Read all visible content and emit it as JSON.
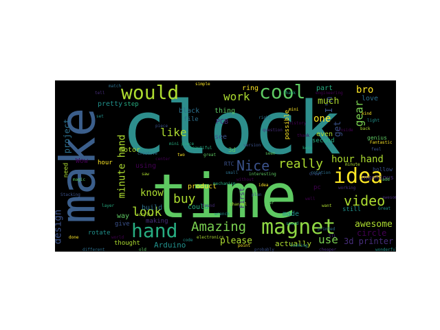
{
  "colors": {
    "page_background": "#ffffff",
    "cloud_background": "#000000",
    "palette": [
      "#2d708e",
      "#5ec962",
      "#3b528b",
      "#472d7b",
      "#21918c",
      "#addc30",
      "#440154",
      "#fde725",
      "#27ad81"
    ]
  },
  "words": [
    {
      "text": "clock"
    },
    {
      "text": "make"
    },
    {
      "text": "time"
    },
    {
      "text": "magnet"
    },
    {
      "text": "would"
    },
    {
      "text": "cool"
    },
    {
      "text": "hand"
    },
    {
      "text": "idea"
    },
    {
      "text": "Amazing"
    },
    {
      "text": "video"
    },
    {
      "text": "Nice"
    },
    {
      "text": "really"
    },
    {
      "text": "hour hand"
    },
    {
      "text": "design"
    },
    {
      "text": "minute hand"
    },
    {
      "text": "like"
    },
    {
      "text": "look"
    },
    {
      "text": "buy"
    },
    {
      "text": "know"
    },
    {
      "text": "work"
    },
    {
      "text": "gear"
    },
    {
      "text": "use"
    },
    {
      "text": "bro"
    },
    {
      "text": "one"
    },
    {
      "text": "get"
    },
    {
      "text": "I'm"
    },
    {
      "text": "much"
    },
    {
      "text": "project"
    },
    {
      "text": "please"
    },
    {
      "text": "awesome"
    },
    {
      "text": "3d printer"
    },
    {
      "text": "Arduino"
    },
    {
      "text": "actually"
    },
    {
      "text": "circle"
    },
    {
      "text": "ring"
    },
    {
      "text": "part"
    },
    {
      "text": "black"
    },
    {
      "text": "thing"
    },
    {
      "text": "see"
    },
    {
      "text": "PCB"
    },
    {
      "text": "pretty"
    },
    {
      "text": "motor"
    },
    {
      "text": "using"
    },
    {
      "text": "product"
    },
    {
      "text": "could"
    },
    {
      "text": "build"
    },
    {
      "text": "way"
    },
    {
      "text": "give"
    },
    {
      "text": "making"
    },
    {
      "text": "rotate"
    },
    {
      "text": "thought"
    },
    {
      "text": "Wow"
    },
    {
      "text": "hour"
    },
    {
      "text": "step"
    },
    {
      "text": "file"
    },
    {
      "text": "3d"
    },
    {
      "text": "RTC"
    },
    {
      "text": "First"
    },
    {
      "text": "made"
    },
    {
      "text": "even"
    },
    {
      "text": "pc"
    },
    {
      "text": "possible"
    },
    {
      "text": "second"
    },
    {
      "text": "love"
    },
    {
      "text": "genius"
    },
    {
      "text": "hollow"
    },
    {
      "text": "ingenious"
    },
    {
      "text": "still"
    },
    {
      "text": "need"
    },
    {
      "text": "engineering"
    },
    {
      "text": "simple"
    },
    {
      "text": "Thank"
    },
    {
      "text": "printed"
    },
    {
      "text": "add"
    },
    {
      "text": "feel"
    },
    {
      "text": "STL"
    },
    {
      "text": "looking"
    },
    {
      "text": "acrylic"
    },
    {
      "text": "center"
    },
    {
      "text": "two"
    },
    {
      "text": "mechanism"
    },
    {
      "text": "small"
    },
    {
      "text": "interesting"
    },
    {
      "text": "Great"
    },
    {
      "text": "working"
    },
    {
      "text": "light"
    },
    {
      "text": "back"
    },
    {
      "text": "thank"
    },
    {
      "text": "idea"
    },
    {
      "text": "mini piece"
    },
    {
      "text": "match"
    },
    {
      "text": "magic"
    },
    {
      "text": "Stacking"
    },
    {
      "text": "tell"
    },
    {
      "text": "set"
    },
    {
      "text": "want"
    },
    {
      "text": "well"
    },
    {
      "text": "Fantastic"
    },
    {
      "text": "layer"
    },
    {
      "text": "different"
    },
    {
      "text": "old"
    },
    {
      "text": "probably"
    },
    {
      "text": "cheaper"
    },
    {
      "text": "wonderful"
    },
    {
      "text": "electronics"
    },
    {
      "text": "world"
    },
    {
      "text": "done"
    },
    {
      "text": "speed"
    },
    {
      "text": "rotation"
    },
    {
      "text": "year"
    },
    {
      "text": "plan"
    },
    {
      "text": "awesome"
    },
    {
      "text": "Great"
    },
    {
      "text": "saw"
    },
    {
      "text": "without"
    },
    {
      "text": "point"
    },
    {
      "text": "beautiful"
    },
    {
      "text": "creative"
    },
    {
      "text": "great"
    },
    {
      "text": "piece"
    },
    {
      "text": "found"
    },
    {
      "text": "wrench"
    },
    {
      "text": "channel"
    },
    {
      "text": "history"
    },
    {
      "text": "mini"
    },
    {
      "text": "keep"
    },
    {
      "text": "right"
    },
    {
      "text": "seen"
    },
    {
      "text": "version"
    },
    {
      "text": "question"
    },
    {
      "text": "code"
    },
    {
      "text": "minute"
    },
    {
      "text": "inside"
    },
    {
      "text": "kind"
    }
  ]
}
